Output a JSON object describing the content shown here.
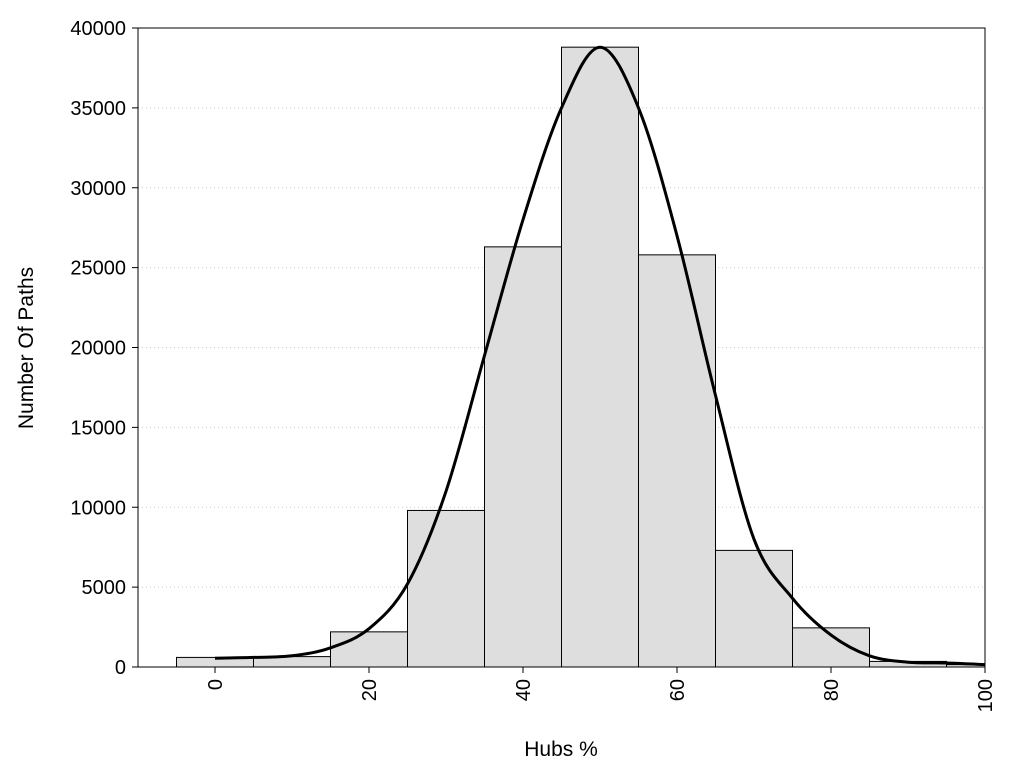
{
  "chart_data": {
    "type": "bar",
    "subtype": "histogram-with-density-curve",
    "title": "",
    "xlabel": "Hubs %",
    "ylabel": "Number Of Paths",
    "xlim": [
      -10,
      100
    ],
    "ylim": [
      0,
      40000
    ],
    "xticks": [
      0,
      20,
      40,
      60,
      80,
      100
    ],
    "yticks": [
      0,
      5000,
      10000,
      15000,
      20000,
      25000,
      30000,
      35000,
      40000
    ],
    "grid": "horizontal dotted",
    "bin_width": 10,
    "bins": [
      {
        "x0": -5,
        "x1": 5,
        "value": 600
      },
      {
        "x0": 5,
        "x1": 15,
        "value": 650
      },
      {
        "x0": 15,
        "x1": 25,
        "value": 2200
      },
      {
        "x0": 25,
        "x1": 35,
        "value": 9800
      },
      {
        "x0": 35,
        "x1": 45,
        "value": 26300
      },
      {
        "x0": 45,
        "x1": 55,
        "value": 38800
      },
      {
        "x0": 55,
        "x1": 65,
        "value": 25800
      },
      {
        "x0": 65,
        "x1": 75,
        "value": 7300
      },
      {
        "x0": 75,
        "x1": 85,
        "value": 2450
      },
      {
        "x0": 85,
        "x1": 95,
        "value": 350
      },
      {
        "x0": 95,
        "x1": 100,
        "value": 150
      }
    ],
    "curve": {
      "x": [
        0,
        5,
        10,
        15,
        20,
        25,
        30,
        35,
        40,
        45,
        50,
        55,
        60,
        65,
        70,
        75,
        80,
        85,
        90,
        95,
        100
      ],
      "y": [
        550,
        600,
        700,
        1200,
        2400,
        5200,
        11000,
        19500,
        28000,
        35000,
        38800,
        35000,
        27000,
        17000,
        8000,
        4300,
        2000,
        700,
        300,
        250,
        150
      ]
    },
    "colors": {
      "bar_fill": "#dedede",
      "bar_stroke": "#000000",
      "curve": "#000000",
      "grid": "#cccccc"
    }
  }
}
